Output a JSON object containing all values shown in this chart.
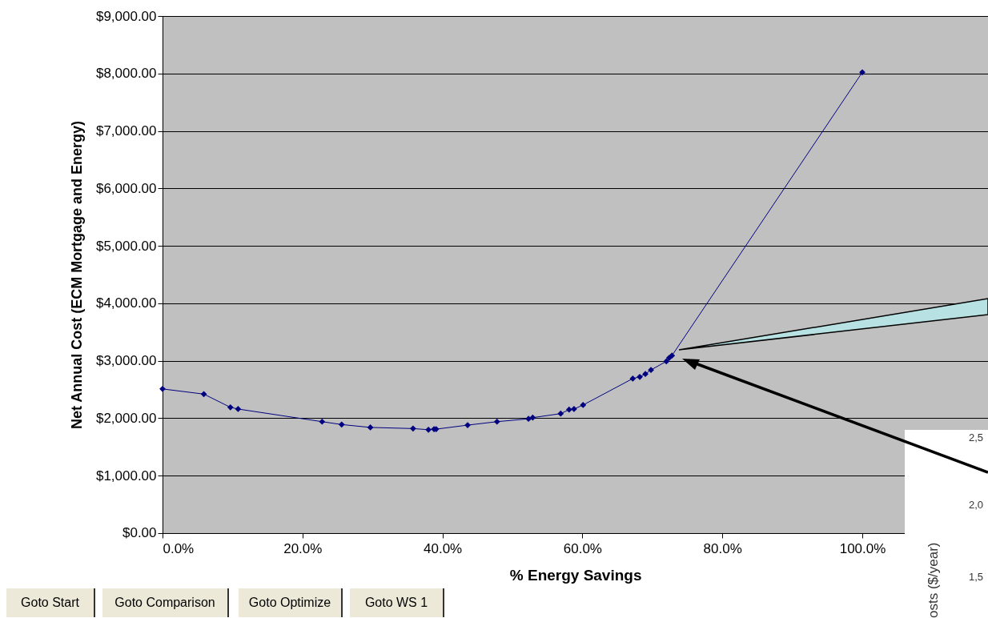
{
  "chart_data": {
    "type": "line",
    "xlabel": "% Energy Savings",
    "ylabel": "Net Annual Cost (ECM Mortgage and Energy)",
    "x": [
      0,
      5.9,
      9.7,
      10.8,
      22.8,
      25.6,
      29.7,
      35.8,
      38.0,
      38.8,
      39.1,
      43.6,
      47.8,
      52.3,
      52.9,
      56.9,
      58.1,
      58.8,
      60.1,
      67.2,
      68.2,
      69.0,
      69.8,
      72.0,
      72.4,
      72.8,
      100
    ],
    "series": [
      {
        "color": "#000080",
        "values": [
          2510,
          2420,
          2190,
          2160,
          1940,
          1890,
          1840,
          1820,
          1800,
          1810,
          1810,
          1880,
          1940,
          1990,
          2010,
          2080,
          2150,
          2160,
          2230,
          2690,
          2720,
          2770,
          2840,
          2990,
          3050,
          3090,
          8020
        ]
      }
    ],
    "xlim": [
      0,
      118
    ],
    "xticks": [
      {
        "value": 0,
        "label": "0.0%"
      },
      {
        "value": 20,
        "label": "20.0%"
      },
      {
        "value": 40,
        "label": "40.0%"
      },
      {
        "value": 60,
        "label": "60.0%"
      },
      {
        "value": 80,
        "label": "80.0%"
      },
      {
        "value": 100,
        "label": "100.0%"
      }
    ],
    "ylim": [
      0,
      9000
    ],
    "yticks": [
      {
        "value": 0,
        "label": "$0.00"
      },
      {
        "value": 1000,
        "label": "$1,000.00"
      },
      {
        "value": 2000,
        "label": "$2,000.00"
      },
      {
        "value": 3000,
        "label": "$3,000.00"
      },
      {
        "value": 4000,
        "label": "$4,000.00"
      },
      {
        "value": 5000,
        "label": "$5,000.00"
      },
      {
        "value": 6000,
        "label": "$6,000.00"
      },
      {
        "value": 7000,
        "label": "$7,000.00"
      },
      {
        "value": 8000,
        "label": "$8,000.00"
      },
      {
        "value": 9000,
        "label": "$9,000.00"
      }
    ],
    "grid": "y",
    "marker": "diamond",
    "line_style": "solid",
    "annotations": [
      "Goto Start",
      "Goto Comparison",
      "Goto Optimize",
      "Goto WS 1",
      "2,5",
      "2,0",
      "1,5",
      "osts ($/year)"
    ]
  }
}
